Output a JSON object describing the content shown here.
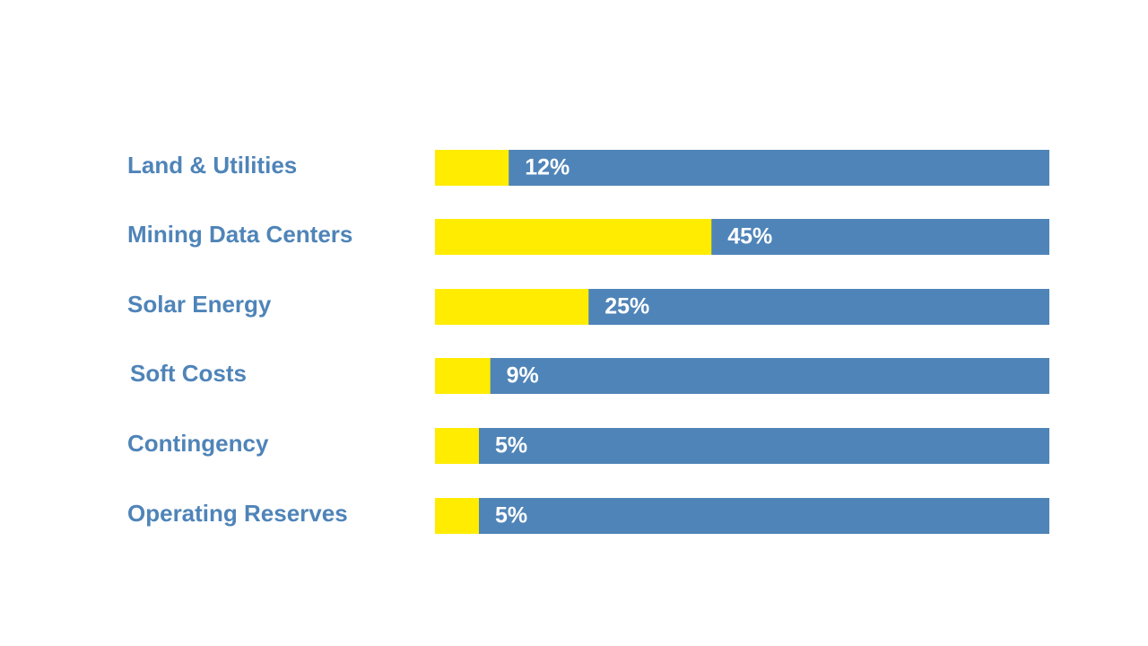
{
  "chart_data": {
    "type": "bar",
    "orientation": "horizontal",
    "stacked": true,
    "categories": [
      "Land & Utilities",
      "Mining Data Centers",
      "Solar Energy",
      "Soft Costs",
      "Contingency",
      "Operating Reserves"
    ],
    "values": [
      12,
      45,
      25,
      9,
      5,
      5
    ],
    "value_labels": [
      "12%",
      "45%",
      "25%",
      "9%",
      "5%",
      "5%"
    ],
    "xlim": [
      0,
      100
    ],
    "grid": false,
    "legend": "none"
  },
  "colors": {
    "fill": "#ffec00",
    "remainder": "#4f84b8",
    "label": "#4f84b8",
    "value_text": "#ffffff",
    "background": "#ffffff"
  }
}
